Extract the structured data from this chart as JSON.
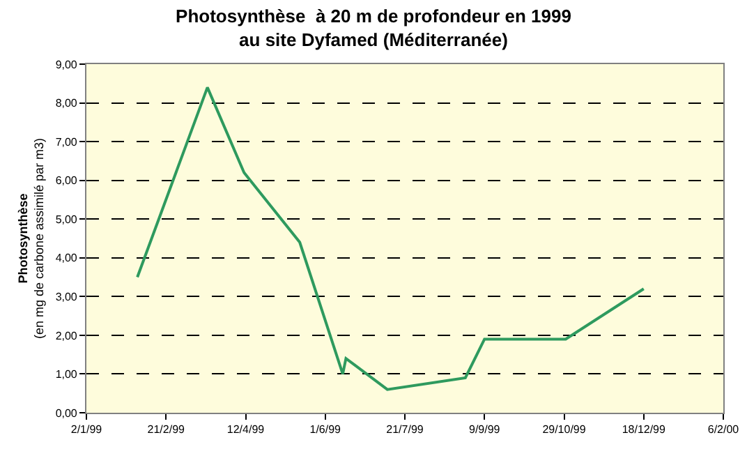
{
  "chart_data": {
    "type": "line",
    "title": "Photosynthèse  à 20 m de profondeur en 1999\nau site Dyfamed (Méditerranée)",
    "ylabel": "Photosynthèse\n(en mg de carbone assimilé par m3)",
    "x": [
      "1999-02-03",
      "1999-03-19",
      "1999-04-11",
      "1999-05-16",
      "1999-06-12",
      "1999-06-14",
      "1999-07-10",
      "1999-08-28",
      "1999-09-09",
      "1999-10-30",
      "1999-12-18"
    ],
    "series": [
      {
        "color": "#2e9a5e",
        "values": [
          3.5,
          8.4,
          6.2,
          4.4,
          1.0,
          1.4,
          0.6,
          0.9,
          1.9,
          1.9,
          3.2
        ]
      }
    ],
    "xlim": [
      "1999-01-02",
      "2000-02-06"
    ],
    "xticks": [
      {
        "value": "1999-01-02",
        "label": "2/1/99"
      },
      {
        "value": "1999-02-21",
        "label": "21/2/99"
      },
      {
        "value": "1999-04-12",
        "label": "12/4/99"
      },
      {
        "value": "1999-06-01",
        "label": "1/6/99"
      },
      {
        "value": "1999-07-21",
        "label": "21/7/99"
      },
      {
        "value": "1999-09-09",
        "label": "9/9/99"
      },
      {
        "value": "1999-10-29",
        "label": "29/10/99"
      },
      {
        "value": "1999-12-18",
        "label": "18/12/99"
      },
      {
        "value": "2000-02-06",
        "label": "6/2/00"
      }
    ],
    "ylim": [
      0,
      9
    ],
    "yticks": [
      {
        "value": 0,
        "label": "0,00"
      },
      {
        "value": 1,
        "label": "1,00"
      },
      {
        "value": 2,
        "label": "2,00"
      },
      {
        "value": 3,
        "label": "3,00"
      },
      {
        "value": 4,
        "label": "4,00"
      },
      {
        "value": 5,
        "label": "5,00"
      },
      {
        "value": 6,
        "label": "6,00"
      },
      {
        "value": 7,
        "label": "7,00"
      },
      {
        "value": 8,
        "label": "8,00"
      },
      {
        "value": 9,
        "label": "9,00"
      }
    ],
    "grid": "y",
    "marker": "none",
    "line_style": "solid"
  }
}
